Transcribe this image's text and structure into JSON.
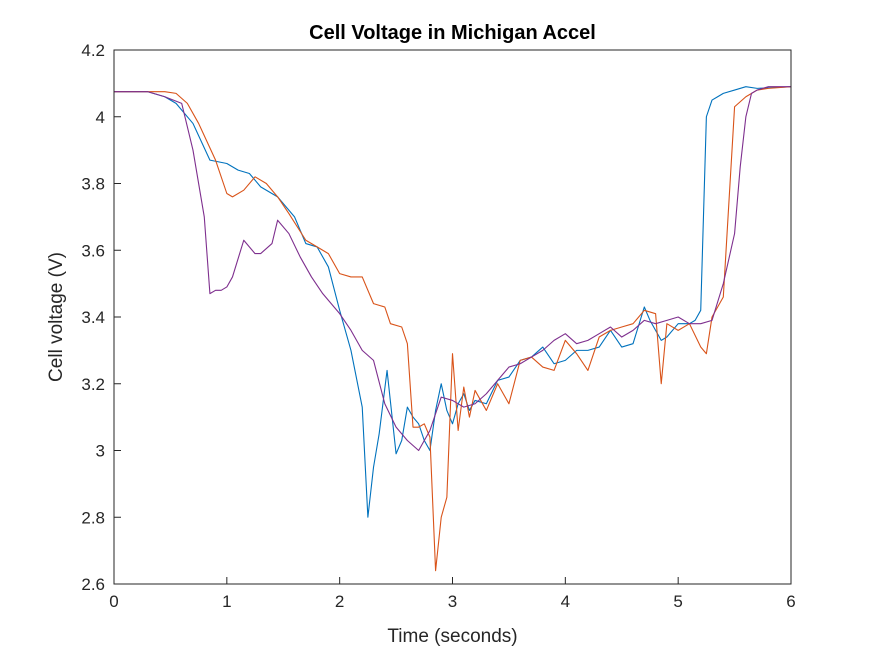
{
  "chart_data": {
    "type": "line",
    "title": "Cell Voltage in Michigan Accel",
    "xlabel": "Time (seconds)",
    "ylabel": "Cell voltage (V)",
    "xlim": [
      0,
      6
    ],
    "ylim": [
      2.6,
      4.2
    ],
    "xticks": [
      "0",
      "1",
      "2",
      "3",
      "4",
      "5",
      "6"
    ],
    "yticks": [
      "2.6",
      "2.8",
      "3",
      "3.2",
      "3.4",
      "3.6",
      "3.8",
      "4",
      "4.2"
    ],
    "grid": false,
    "series": [
      {
        "color": "#0072BD",
        "x": [
          0,
          0.3,
          0.45,
          0.55,
          0.7,
          0.85,
          1.0,
          1.1,
          1.2,
          1.3,
          1.45,
          1.6,
          1.7,
          1.8,
          1.9,
          2.0,
          2.1,
          2.2,
          2.25,
          2.3,
          2.35,
          2.42,
          2.5,
          2.55,
          2.6,
          2.65,
          2.7,
          2.75,
          2.8,
          2.85,
          2.9,
          2.95,
          3.0,
          3.05,
          3.1,
          3.15,
          3.2,
          3.3,
          3.4,
          3.5,
          3.6,
          3.7,
          3.8,
          3.9,
          4.0,
          4.1,
          4.2,
          4.3,
          4.4,
          4.5,
          4.6,
          4.7,
          4.75,
          4.85,
          4.9,
          5.0,
          5.05,
          5.1,
          5.15,
          5.2,
          5.25,
          5.3,
          5.35,
          5.4,
          5.5,
          5.6,
          5.7,
          6.0
        ],
        "y": [
          4.075,
          4.075,
          4.06,
          4.04,
          3.98,
          3.87,
          3.86,
          3.84,
          3.83,
          3.79,
          3.76,
          3.7,
          3.62,
          3.61,
          3.55,
          3.42,
          3.3,
          3.13,
          2.8,
          2.95,
          3.05,
          3.24,
          2.99,
          3.03,
          3.13,
          3.1,
          3.08,
          3.03,
          3.0,
          3.12,
          3.2,
          3.12,
          3.08,
          3.14,
          3.17,
          3.12,
          3.15,
          3.14,
          3.21,
          3.22,
          3.27,
          3.28,
          3.31,
          3.26,
          3.27,
          3.3,
          3.3,
          3.31,
          3.36,
          3.31,
          3.32,
          3.43,
          3.39,
          3.33,
          3.34,
          3.38,
          3.38,
          3.38,
          3.39,
          3.42,
          4.0,
          4.05,
          4.06,
          4.07,
          4.08,
          4.09,
          4.085,
          4.09
        ]
      },
      {
        "color": "#D95319",
        "x": [
          0,
          0.45,
          0.55,
          0.65,
          0.75,
          0.9,
          1.0,
          1.05,
          1.15,
          1.25,
          1.35,
          1.45,
          1.55,
          1.7,
          1.8,
          1.9,
          2.0,
          2.1,
          2.2,
          2.3,
          2.4,
          2.45,
          2.55,
          2.6,
          2.65,
          2.7,
          2.75,
          2.8,
          2.85,
          2.9,
          2.95,
          3.0,
          3.05,
          3.1,
          3.15,
          3.2,
          3.3,
          3.4,
          3.5,
          3.6,
          3.7,
          3.8,
          3.9,
          4.0,
          4.1,
          4.2,
          4.3,
          4.4,
          4.5,
          4.6,
          4.7,
          4.8,
          4.85,
          4.9,
          5.0,
          5.1,
          5.2,
          5.25,
          5.3,
          5.4,
          5.5,
          5.6,
          5.7,
          5.8,
          6.0
        ],
        "y": [
          4.075,
          4.075,
          4.07,
          4.04,
          3.98,
          3.87,
          3.77,
          3.76,
          3.78,
          3.82,
          3.8,
          3.76,
          3.71,
          3.63,
          3.61,
          3.59,
          3.53,
          3.52,
          3.52,
          3.44,
          3.43,
          3.38,
          3.37,
          3.32,
          3.07,
          3.07,
          3.08,
          3.04,
          2.64,
          2.8,
          2.86,
          3.29,
          3.06,
          3.19,
          3.1,
          3.18,
          3.12,
          3.2,
          3.14,
          3.27,
          3.28,
          3.25,
          3.24,
          3.33,
          3.29,
          3.24,
          3.34,
          3.36,
          3.37,
          3.38,
          3.42,
          3.41,
          3.2,
          3.38,
          3.36,
          3.38,
          3.31,
          3.29,
          3.4,
          3.46,
          4.03,
          4.06,
          4.08,
          4.085,
          4.09
        ]
      },
      {
        "color": "#7E2F8E",
        "x": [
          0,
          0.3,
          0.45,
          0.6,
          0.7,
          0.8,
          0.85,
          0.9,
          0.95,
          1.0,
          1.05,
          1.15,
          1.25,
          1.3,
          1.4,
          1.45,
          1.55,
          1.65,
          1.75,
          1.85,
          2.0,
          2.1,
          2.2,
          2.3,
          2.4,
          2.5,
          2.6,
          2.7,
          2.8,
          2.9,
          3.0,
          3.1,
          3.2,
          3.3,
          3.4,
          3.5,
          3.6,
          3.7,
          3.8,
          3.9,
          4.0,
          4.1,
          4.2,
          4.3,
          4.4,
          4.5,
          4.6,
          4.7,
          4.8,
          4.9,
          5.0,
          5.1,
          5.2,
          5.3,
          5.4,
          5.5,
          5.55,
          5.6,
          5.65,
          5.7,
          5.8,
          6.0
        ],
        "y": [
          4.075,
          4.075,
          4.06,
          4.04,
          3.9,
          3.7,
          3.47,
          3.48,
          3.48,
          3.49,
          3.52,
          3.63,
          3.59,
          3.59,
          3.62,
          3.69,
          3.65,
          3.58,
          3.52,
          3.47,
          3.41,
          3.36,
          3.3,
          3.27,
          3.14,
          3.07,
          3.03,
          3.0,
          3.06,
          3.16,
          3.15,
          3.13,
          3.14,
          3.17,
          3.21,
          3.25,
          3.26,
          3.28,
          3.3,
          3.33,
          3.35,
          3.32,
          3.33,
          3.35,
          3.37,
          3.34,
          3.36,
          3.39,
          3.38,
          3.39,
          3.4,
          3.38,
          3.38,
          3.39,
          3.5,
          3.65,
          3.85,
          4.0,
          4.07,
          4.08,
          4.09,
          4.09
        ]
      }
    ]
  }
}
